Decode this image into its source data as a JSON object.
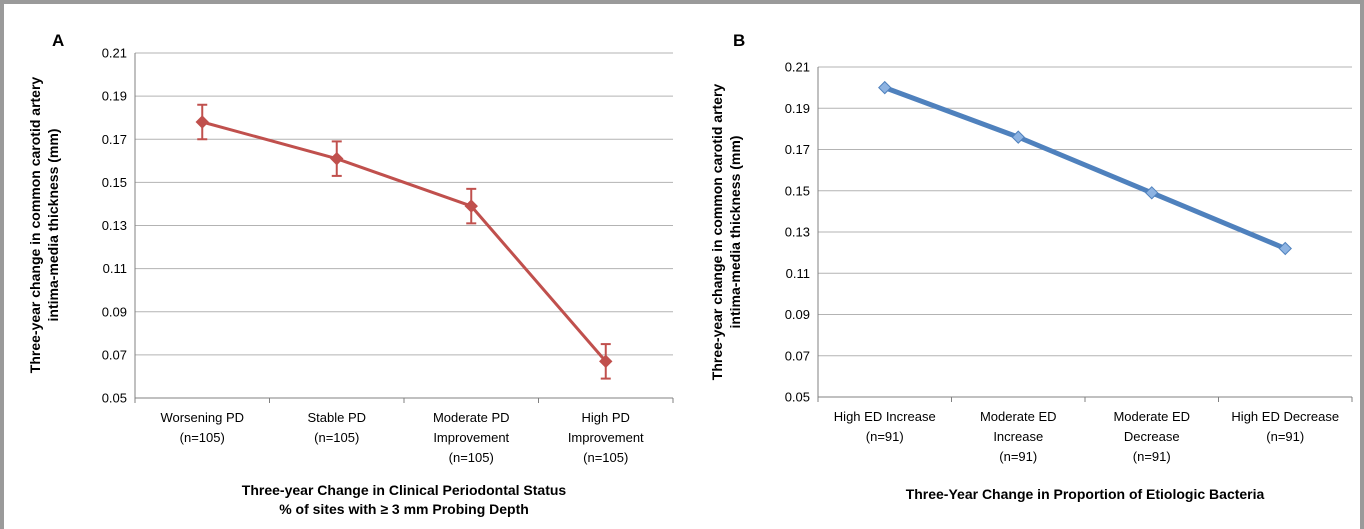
{
  "chart_data": [
    {
      "panel": "A",
      "type": "line",
      "categories": [
        [
          "Worsening PD",
          "(n=105)"
        ],
        [
          "Stable PD",
          "(n=105)"
        ],
        [
          "Moderate PD",
          "Improvement",
          "(n=105)"
        ],
        [
          "High PD",
          "Improvement",
          "(n=105)"
        ]
      ],
      "series": [
        {
          "values": [
            0.178,
            0.161,
            0.139,
            0.067
          ],
          "error": [
            0.008,
            0.008,
            0.008,
            0.008
          ],
          "color": "#c0504d"
        }
      ],
      "xlabel": [
        "Three-year Change in Clinical Periodontal Status",
        "% of sites with ≥ 3 mm Probing Depth"
      ],
      "ylabel": [
        "Three-year change in common carotid artery",
        "intima-media thickness (mm)"
      ],
      "ylim": [
        0.05,
        0.21
      ],
      "yticks": [
        "0.05",
        "0.07",
        "0.09",
        "0.11",
        "0.13",
        "0.15",
        "0.17",
        "0.19",
        "0.21"
      ],
      "grid": true,
      "marker": "diamond"
    },
    {
      "panel": "B",
      "type": "line",
      "categories": [
        [
          "High ED Increase",
          "(n=91)"
        ],
        [
          "Moderate ED",
          "Increase",
          "(n=91)"
        ],
        [
          "Moderate ED",
          "Decrease",
          "(n=91)"
        ],
        [
          "High ED Decrease",
          "(n=91)"
        ]
      ],
      "series": [
        {
          "values": [
            0.2,
            0.176,
            0.149,
            0.122
          ],
          "color": "#4f81bd"
        }
      ],
      "xlabel": [
        "Three-Year Change in Proportion of Etiologic Bacteria"
      ],
      "ylabel": [
        "Three-year change in common carotid artery",
        "intima-media thickness (mm)"
      ],
      "ylim": [
        0.05,
        0.21
      ],
      "yticks": [
        "0.05",
        "0.07",
        "0.09",
        "0.11",
        "0.13",
        "0.15",
        "0.17",
        "0.19",
        "0.21"
      ],
      "grid": true,
      "marker": "diamond"
    }
  ]
}
